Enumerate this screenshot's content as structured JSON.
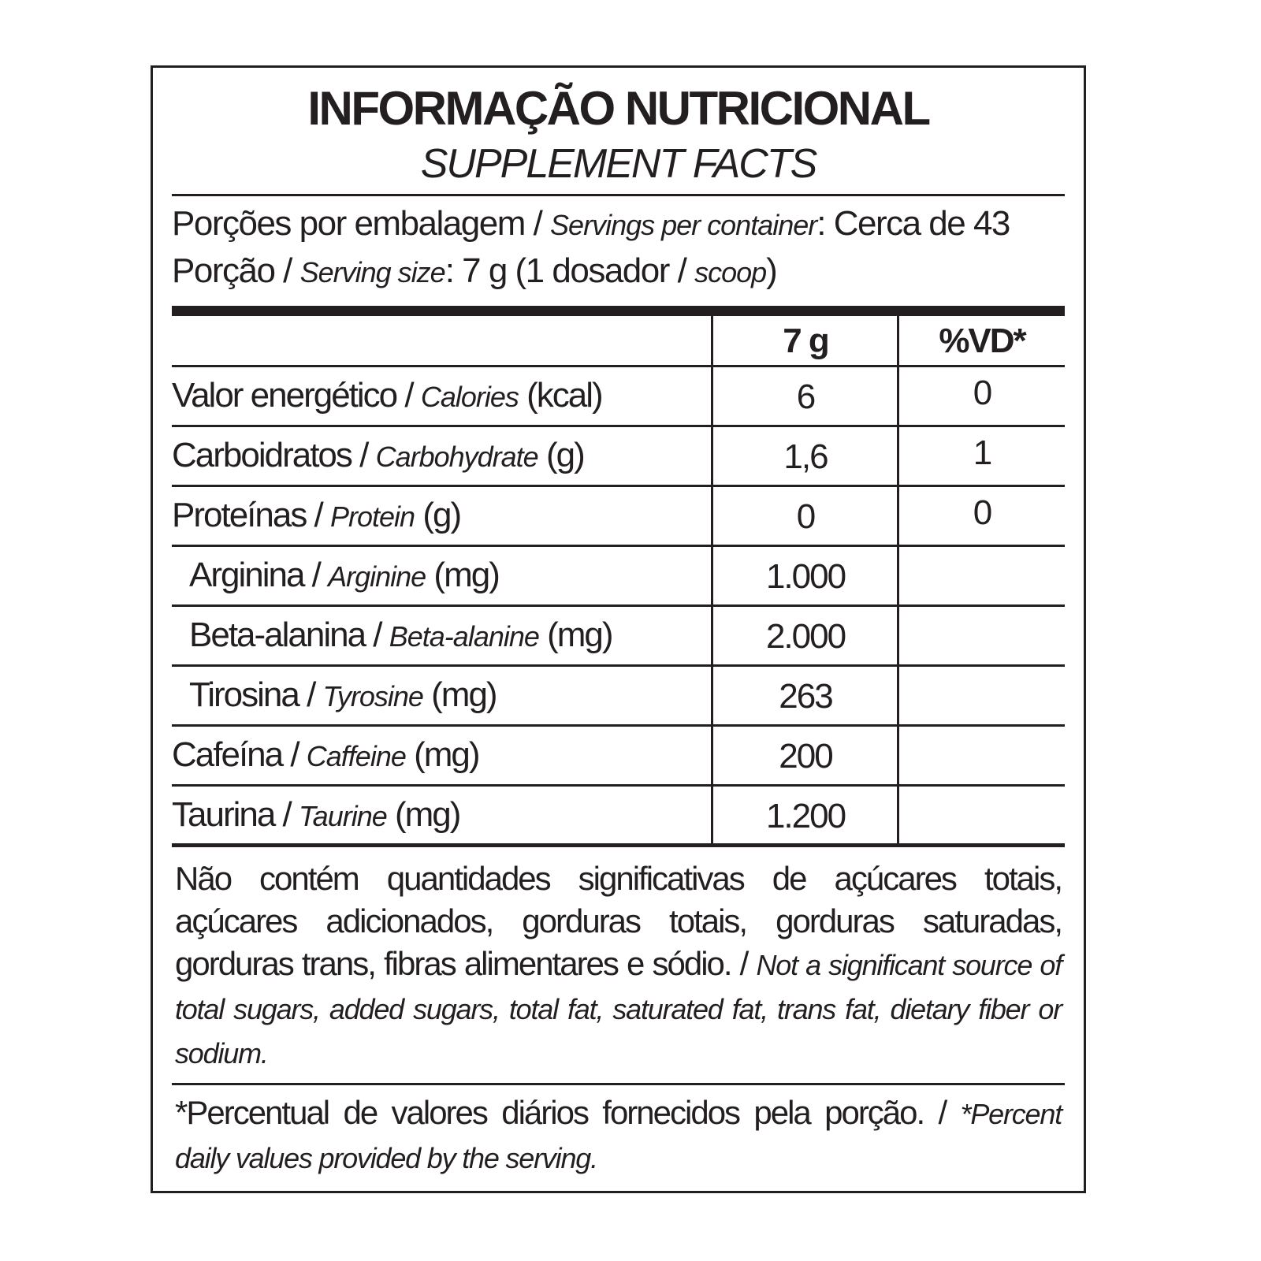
{
  "title": "INFORMAÇÃO NUTRICIONAL",
  "subtitle": "SUPPLEMENT FACTS",
  "servings": {
    "pt": "Porções por embalagem / ",
    "en": "Servings per container",
    "value": ": Cerca de 43"
  },
  "serving_size": {
    "pt": "Porção / ",
    "en": "Serving size",
    "value": ": 7 g (1 dosador / ",
    "en2": "scoop",
    "close": ")"
  },
  "table": {
    "headers": [
      "7 g",
      "%VD*"
    ],
    "rows": [
      {
        "pt": "Valor energético / ",
        "en": "Calories",
        "unit": " (kcal)",
        "amount": "6",
        "dv": "0"
      },
      {
        "pt": "Carboidratos / ",
        "en": "Carbohydrate",
        "unit": " (g)",
        "amount": "1,6",
        "dv": "1"
      },
      {
        "pt": "Proteínas / ",
        "en": "Protein",
        "unit": " (g)",
        "amount": "0",
        "dv": "0"
      },
      {
        "pt": "Arginina / ",
        "en": "Arginine",
        "unit": " (mg)",
        "amount": "1.000",
        "dv": ""
      },
      {
        "pt": "Beta-alanina / ",
        "en": "Beta-alanine",
        "unit": " (mg)",
        "amount": "2.000",
        "dv": ""
      },
      {
        "pt": "Tirosina / ",
        "en": "Tyrosine",
        "unit": " (mg)",
        "amount": "263",
        "dv": ""
      },
      {
        "pt": "Cafeína / ",
        "en": "Caffeine",
        "unit": " (mg)",
        "amount": "200",
        "dv": ""
      },
      {
        "pt": "Taurina / ",
        "en": "Taurine",
        "unit": " (mg)",
        "amount": "1.200",
        "dv": ""
      }
    ]
  },
  "note": {
    "pt": "Não contém quantidades significativas de açúcares totais, açúcares adicionados, gorduras totais, gorduras saturadas, gorduras trans, fibras alimentares e sódio. / ",
    "en": "Not a significant source of total sugars, added sugars, total fat, saturated fat, trans fat, dietary fiber or sodium."
  },
  "footnote": {
    "pt": "*Percentual de valores diários fornecidos pela porção. / ",
    "en": "*Percent daily values provided by the serving."
  }
}
